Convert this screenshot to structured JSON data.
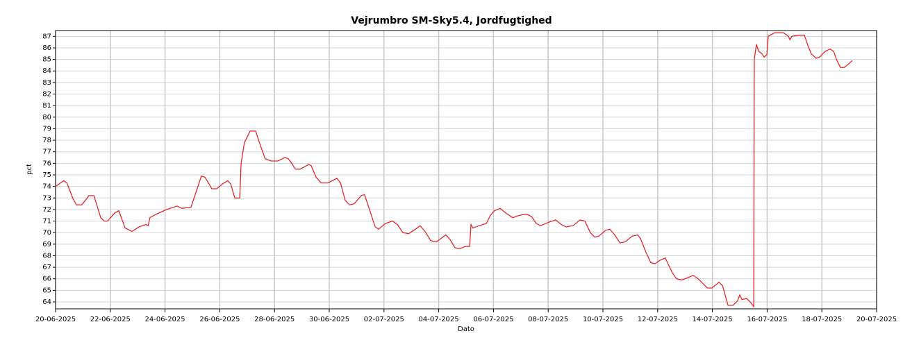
{
  "chart_data": {
    "type": "line",
    "title": "Vejrumbro SM-Sky5.4, Jordfugtighed",
    "xlabel": "Dato",
    "ylabel": "pct",
    "xlim": [
      0,
      30
    ],
    "xticks": [
      {
        "value": 0,
        "label": "20-06-2025"
      },
      {
        "value": 2,
        "label": "22-06-2025"
      },
      {
        "value": 4,
        "label": "24-06-2025"
      },
      {
        "value": 6,
        "label": "26-06-2025"
      },
      {
        "value": 8,
        "label": "28-06-2025"
      },
      {
        "value": 10,
        "label": "30-06-2025"
      },
      {
        "value": 12,
        "label": "02-07-2025"
      },
      {
        "value": 14,
        "label": "04-07-2025"
      },
      {
        "value": 16,
        "label": "06-07-2025"
      },
      {
        "value": 18,
        "label": "08-07-2025"
      },
      {
        "value": 20,
        "label": "10-07-2025"
      },
      {
        "value": 22,
        "label": "12-07-2025"
      },
      {
        "value": 24,
        "label": "14-07-2025"
      },
      {
        "value": 26,
        "label": "16-07-2025"
      },
      {
        "value": 28,
        "label": "18-07-2025"
      },
      {
        "value": 30,
        "label": "20-07-2025"
      }
    ],
    "ylim": [
      63.4,
      87.5
    ],
    "yticks": [
      64,
      65,
      66,
      67,
      68,
      69,
      70,
      71,
      72,
      73,
      74,
      75,
      76,
      77,
      78,
      79,
      80,
      81,
      82,
      83,
      84,
      85,
      86,
      87
    ],
    "grid": true,
    "series": [
      {
        "name": "Jordfugtighed",
        "color": "#e3262b",
        "x": [
          0,
          0.3,
          0.41,
          0.63,
          0.76,
          0.96,
          1.22,
          1.4,
          1.65,
          1.78,
          1.9,
          2.16,
          2.31,
          2.54,
          2.79,
          3.05,
          3.3,
          3.38,
          3.45,
          3.68,
          4.06,
          4.44,
          4.62,
          4.95,
          5.13,
          5.33,
          5.46,
          5.71,
          5.89,
          6.09,
          6.29,
          6.4,
          6.55,
          6.73,
          6.78,
          6.9,
          7.11,
          7.31,
          7.49,
          7.66,
          7.87,
          8.12,
          8.38,
          8.5,
          8.63,
          8.76,
          8.93,
          9.26,
          9.34,
          9.52,
          9.7,
          9.95,
          10.28,
          10.41,
          10.58,
          10.74,
          10.91,
          11.17,
          11.29,
          11.47,
          11.68,
          11.8,
          12.06,
          12.31,
          12.49,
          12.69,
          12.9,
          13.15,
          13.32,
          13.5,
          13.71,
          13.91,
          14.09,
          14.26,
          14.42,
          14.59,
          14.77,
          14.97,
          15.13,
          15.18,
          15.25,
          15.48,
          15.74,
          15.89,
          16.04,
          16.24,
          16.45,
          16.7,
          16.95,
          17.21,
          17.39,
          17.56,
          17.72,
          18.02,
          18.27,
          18.48,
          18.65,
          18.91,
          19.16,
          19.34,
          19.54,
          19.7,
          19.85,
          20.1,
          20.25,
          20.43,
          20.63,
          20.81,
          21.07,
          21.27,
          21.37,
          21.57,
          21.75,
          21.9,
          22.08,
          22.28,
          22.38,
          22.54,
          22.69,
          22.89,
          23.1,
          23.3,
          23.48,
          23.65,
          23.81,
          23.98,
          24.24,
          24.37,
          24.57,
          24.75,
          24.92,
          25.0,
          25.08,
          25.25,
          25.38,
          25.51,
          25.53,
          25.61,
          25.69,
          25.81,
          25.89,
          25.99,
          26.04,
          26.27,
          26.6,
          26.78,
          26.83,
          26.9,
          27.16,
          27.36,
          27.49,
          27.61,
          27.79,
          27.92,
          28.12,
          28.3,
          28.43,
          28.55,
          28.68,
          28.81,
          28.93,
          29.11
        ],
        "values": [
          74.0,
          74.5,
          74.3,
          73.0,
          72.4,
          72.4,
          73.2,
          73.2,
          71.3,
          71.0,
          71.0,
          71.7,
          71.9,
          70.4,
          70.1,
          70.5,
          70.7,
          70.6,
          71.3,
          71.6,
          72.0,
          72.3,
          72.1,
          72.2,
          73.5,
          74.9,
          74.8,
          73.8,
          73.8,
          74.2,
          74.5,
          74.2,
          73.0,
          73.0,
          76.0,
          77.8,
          78.8,
          78.8,
          77.5,
          76.4,
          76.2,
          76.2,
          76.5,
          76.4,
          76.0,
          75.5,
          75.5,
          75.9,
          75.8,
          74.8,
          74.3,
          74.3,
          74.7,
          74.3,
          72.8,
          72.4,
          72.5,
          73.2,
          73.3,
          72.0,
          70.5,
          70.3,
          70.8,
          71.0,
          70.7,
          70.0,
          69.9,
          70.3,
          70.6,
          70.1,
          69.3,
          69.2,
          69.5,
          69.8,
          69.4,
          68.7,
          68.6,
          68.8,
          68.8,
          70.7,
          70.4,
          70.6,
          70.8,
          71.5,
          71.9,
          72.1,
          71.7,
          71.3,
          71.5,
          71.6,
          71.4,
          70.8,
          70.6,
          70.9,
          71.1,
          70.7,
          70.5,
          70.6,
          71.1,
          71.0,
          70.0,
          69.6,
          69.7,
          70.2,
          70.3,
          69.8,
          69.1,
          69.2,
          69.7,
          69.8,
          69.5,
          68.3,
          67.4,
          67.3,
          67.6,
          67.8,
          67.3,
          66.5,
          66.0,
          65.9,
          66.1,
          66.3,
          66.0,
          65.6,
          65.2,
          65.2,
          65.7,
          65.4,
          63.7,
          63.7,
          64.1,
          64.6,
          64.2,
          64.3,
          64.0,
          63.6,
          85.0,
          86.3,
          85.7,
          85.5,
          85.2,
          85.4,
          87.0,
          87.3,
          87.3,
          87.0,
          86.7,
          87.0,
          87.1,
          87.1,
          86.2,
          85.5,
          85.1,
          85.2,
          85.7,
          85.9,
          85.7,
          84.9,
          84.3,
          84.3,
          84.5,
          84.9
        ]
      }
    ]
  }
}
